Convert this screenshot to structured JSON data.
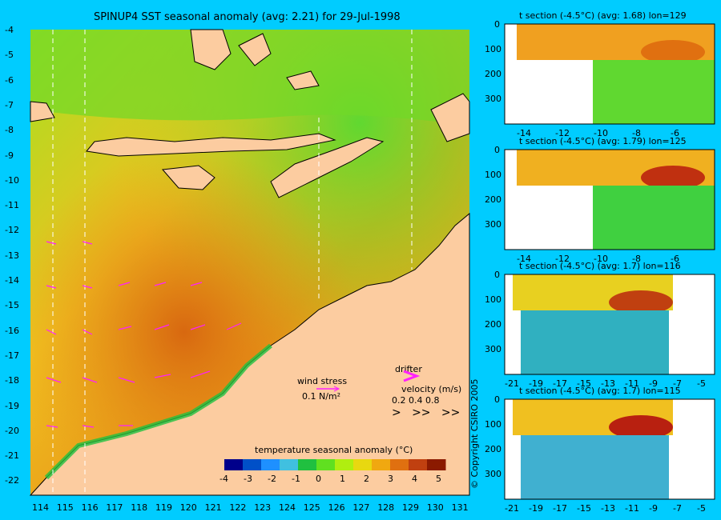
{
  "main_map": {
    "title": "SPINUP4 SST seasonal anomaly (avg: 2.21) for 29-Jul-1998",
    "lat_ticks": [
      "-4",
      "-5",
      "-6",
      "-7",
      "-8",
      "-9",
      "-10",
      "-11",
      "-12",
      "-13",
      "-14",
      "-15",
      "-16",
      "-17",
      "-18",
      "-19",
      "-20",
      "-21",
      "-22"
    ],
    "lon_ticks": [
      "114",
      "115",
      "116",
      "117",
      "118",
      "119",
      "120",
      "121",
      "122",
      "123",
      "124",
      "125",
      "126",
      "127",
      "128",
      "129",
      "130",
      "131"
    ],
    "wind_stress_label": "wind stress",
    "wind_stress_scale": "0.1 N/m²",
    "drifter_label": "drifter",
    "velocity_label": "velocity (m/s)",
    "velocity_values": [
      "0.2",
      "0.4",
      "0.8"
    ],
    "colorbar": {
      "title": "temperature seasonal anomaly (°C)",
      "ticks": [
        "-4",
        "-3",
        "-2",
        "-1",
        "0",
        "1",
        "2",
        "3",
        "4",
        "5"
      ],
      "colors": [
        "#00008b",
        "#0050c8",
        "#1e90ff",
        "#40c0e0",
        "#20c040",
        "#60e020",
        "#b0ee10",
        "#e8d810",
        "#f0a810",
        "#e07010",
        "#c04010",
        "#8b1a00"
      ]
    },
    "colors": {
      "land": "#fccca0",
      "ocean_warm": "#f0a020",
      "ocean_mid": "#e8d820",
      "ocean_cool": "#80e030"
    }
  },
  "sections": [
    {
      "title": "t section (-4.5°C) (avg: 1.68) lon=129",
      "x_ticks": [
        "-14",
        "-12",
        "-10",
        "-8",
        "-6"
      ],
      "y_ticks": [
        "0",
        "100",
        "200",
        "300"
      ]
    },
    {
      "title": "t section (-4.5°C) (avg: 1.79) lon=125",
      "x_ticks": [
        "-14",
        "-12",
        "-10",
        "-8",
        "-6"
      ],
      "y_ticks": [
        "0",
        "100",
        "200",
        "300"
      ]
    },
    {
      "title": "t section (-4.5°C) (avg: 1.7) lon=116",
      "x_ticks": [
        "-21",
        "-19",
        "-17",
        "-15",
        "-13",
        "-11",
        "-9",
        "-7",
        "-5"
      ],
      "y_ticks": [
        "0",
        "100",
        "200",
        "300"
      ]
    },
    {
      "title": "t section (-4.5°C) (avg: 1.7) lon=115",
      "x_ticks": [
        "-21",
        "-19",
        "-17",
        "-15",
        "-13",
        "-11",
        "-9",
        "-7",
        "-5"
      ],
      "y_ticks": [
        "0",
        "100",
        "200",
        "300"
      ]
    }
  ],
  "copyright": "© Copyright CSIRO 2005"
}
